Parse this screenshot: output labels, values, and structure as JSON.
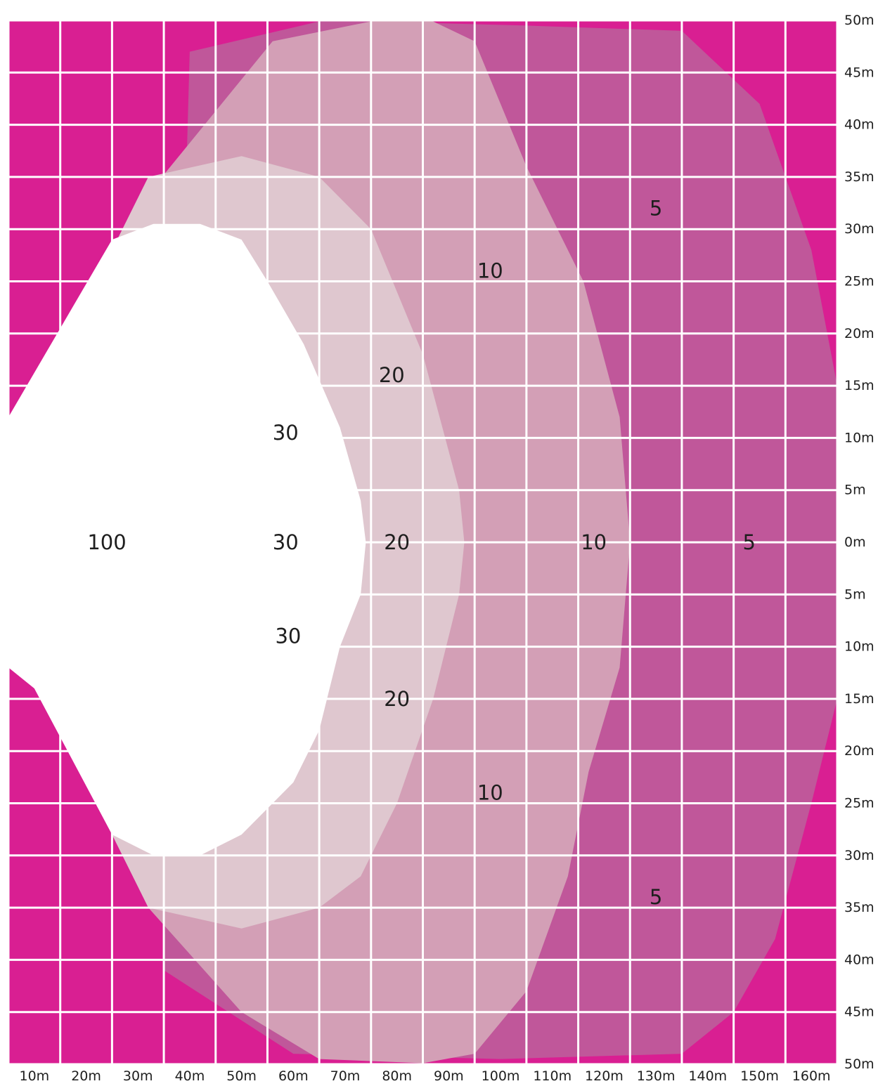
{
  "chart_data": {
    "type": "heatmap",
    "title": "",
    "x_ticks": [
      "10m",
      "20m",
      "30m",
      "40m",
      "50m",
      "60m",
      "70m",
      "80m",
      "90m",
      "100m",
      "110m",
      "120m",
      "130m",
      "140m",
      "150m",
      "160m"
    ],
    "y_ticks": [
      "50m",
      "45m",
      "40m",
      "35m",
      "30m",
      "25m",
      "20m",
      "15m",
      "10m",
      "5m",
      "0m",
      "5m",
      "10m",
      "15m",
      "20m",
      "25m",
      "30m",
      "35m",
      "40m",
      "45m",
      "50m"
    ],
    "xlim": [
      0,
      160
    ],
    "ylim": [
      -50,
      50
    ],
    "grid": true,
    "background_color": "#d91f92",
    "zones": [
      {
        "value": "5",
        "color": "#c0579a",
        "outline": [
          [
            35,
            47
          ],
          [
            60,
            49.9
          ],
          [
            70,
            49.9
          ],
          [
            100,
            49.5
          ],
          [
            130,
            49
          ],
          [
            145,
            42
          ],
          [
            155,
            28
          ],
          [
            160,
            15
          ],
          [
            160,
            -15
          ],
          [
            155,
            -25
          ],
          [
            148,
            -38
          ],
          [
            140,
            -45
          ],
          [
            130,
            -49
          ],
          [
            95,
            -49.5
          ],
          [
            55,
            -49
          ],
          [
            30,
            -41
          ]
        ],
        "labels": [
          {
            "text": "5",
            "x": 125,
            "y": 32
          },
          {
            "text": "5",
            "x": 143,
            "y": 0
          },
          {
            "text": "5",
            "x": 125,
            "y": -34
          }
        ]
      },
      {
        "value": "10",
        "color": "#d39fb6",
        "outline": [
          [
            28,
            34
          ],
          [
            51,
            48
          ],
          [
            70,
            49.9
          ],
          [
            82,
            49.9
          ],
          [
            90,
            48
          ],
          [
            100,
            36
          ],
          [
            111,
            25
          ],
          [
            118,
            12
          ],
          [
            120,
            0
          ],
          [
            118,
            -12
          ],
          [
            112,
            -22
          ],
          [
            108,
            -32
          ],
          [
            100,
            -43
          ],
          [
            90,
            -49
          ],
          [
            80,
            -49.9
          ],
          [
            60,
            -49.5
          ],
          [
            45,
            -45
          ],
          [
            27,
            -35
          ],
          [
            10,
            -11
          ]
        ],
        "labels": [
          {
            "text": "10",
            "x": 93,
            "y": 26
          },
          {
            "text": "10",
            "x": 113,
            "y": 0
          },
          {
            "text": "10",
            "x": 93,
            "y": -24
          }
        ]
      },
      {
        "value": "20",
        "color": "#dfc7cf",
        "outline": [
          [
            27,
            35
          ],
          [
            45,
            37
          ],
          [
            60,
            35
          ],
          [
            70,
            30
          ],
          [
            80,
            18
          ],
          [
            87,
            5
          ],
          [
            88,
            0
          ],
          [
            87,
            -5
          ],
          [
            82,
            -15
          ],
          [
            75,
            -25
          ],
          [
            68,
            -32
          ],
          [
            60,
            -35
          ],
          [
            45,
            -37
          ],
          [
            27,
            -35
          ],
          [
            20,
            -28
          ],
          [
            20,
            28
          ]
        ],
        "labels": [
          {
            "text": "20",
            "x": 74,
            "y": 16
          },
          {
            "text": "20",
            "x": 75,
            "y": 0
          },
          {
            "text": "20",
            "x": 75,
            "y": -15
          }
        ]
      },
      {
        "value": "100",
        "color": "#ffffff",
        "outline": [
          [
            0,
            12
          ],
          [
            20,
            29
          ],
          [
            28,
            30.5
          ],
          [
            37,
            30.5
          ],
          [
            45,
            29
          ],
          [
            50,
            25
          ],
          [
            57,
            19
          ],
          [
            64,
            11
          ],
          [
            68,
            4
          ],
          [
            69,
            0
          ],
          [
            68,
            -5
          ],
          [
            64,
            -10
          ],
          [
            60,
            -18
          ],
          [
            55,
            -23
          ],
          [
            49,
            -26
          ],
          [
            45,
            -28
          ],
          [
            37,
            -30
          ],
          [
            28,
            -30
          ],
          [
            20,
            -28
          ],
          [
            5,
            -14
          ],
          [
            0,
            -12
          ]
        ],
        "labels": [
          {
            "text": "100",
            "x": 19,
            "y": 0
          }
        ]
      }
    ],
    "extra_labels": [
      {
        "text": "30",
        "x": 53.5,
        "y": 10.5
      },
      {
        "text": "30",
        "x": 53.5,
        "y": 0
      },
      {
        "text": "30",
        "x": 54,
        "y": -9
      }
    ]
  }
}
